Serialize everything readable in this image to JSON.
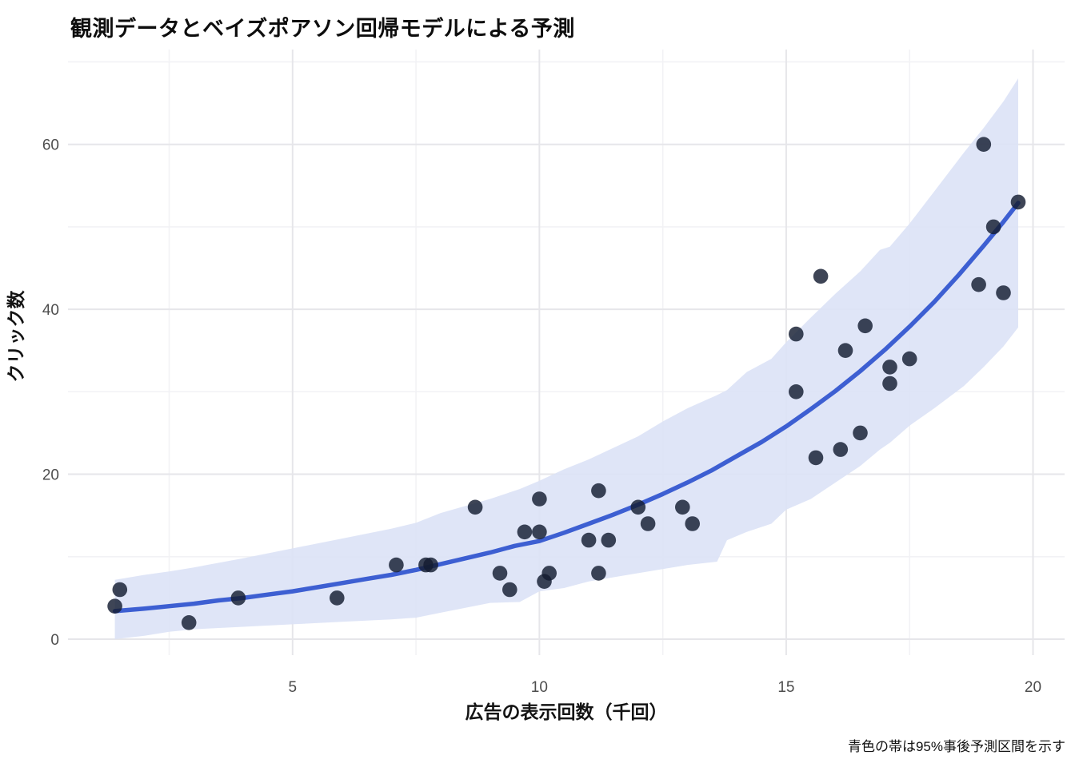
{
  "chart_data": {
    "type": "scatter",
    "title": "観測データとベイズポアソン回帰モデルによる予測",
    "xlabel": "広告の表示回数（千回）",
    "ylabel": "クリック数",
    "caption": "青色の帯は95%事後予測区間を示す",
    "xlim": [
      0.45,
      20.64
    ],
    "ylim": [
      -1.94,
      71.5
    ],
    "x_major_ticks": [
      5,
      10,
      15,
      20
    ],
    "x_minor_ticks": [
      2.5,
      7.5,
      12.5,
      17.5
    ],
    "y_major_ticks": [
      0,
      20,
      40,
      60
    ],
    "y_minor_ticks": [
      10,
      30,
      50,
      70
    ],
    "grid": "on",
    "legend_position": "none",
    "series": [
      {
        "name": "observed-data-points",
        "type": "scatter",
        "points": [
          [
            1.4,
            4
          ],
          [
            1.5,
            6
          ],
          [
            2.9,
            2
          ],
          [
            3.9,
            5
          ],
          [
            5.9,
            5
          ],
          [
            7.1,
            9
          ],
          [
            7.7,
            9
          ],
          [
            7.8,
            9
          ],
          [
            8.7,
            16
          ],
          [
            9.2,
            8
          ],
          [
            9.4,
            6
          ],
          [
            9.7,
            13
          ],
          [
            10.0,
            13
          ],
          [
            10.0,
            17
          ],
          [
            10.1,
            7
          ],
          [
            10.2,
            8
          ],
          [
            11.0,
            12
          ],
          [
            11.2,
            18
          ],
          [
            11.2,
            8
          ],
          [
            11.4,
            12
          ],
          [
            12.0,
            16
          ],
          [
            12.2,
            14
          ],
          [
            12.9,
            16
          ],
          [
            13.1,
            14
          ],
          [
            15.2,
            37
          ],
          [
            15.2,
            30
          ],
          [
            15.6,
            22
          ],
          [
            15.7,
            44
          ],
          [
            16.1,
            23
          ],
          [
            16.2,
            35
          ],
          [
            16.5,
            25
          ],
          [
            16.6,
            38
          ],
          [
            17.1,
            33
          ],
          [
            17.1,
            31
          ],
          [
            17.5,
            34
          ],
          [
            18.9,
            43
          ],
          [
            19.0,
            60
          ],
          [
            19.2,
            50
          ],
          [
            19.4,
            42
          ],
          [
            19.7,
            53
          ]
        ]
      },
      {
        "name": "posterior-mean-curve",
        "type": "line",
        "points": [
          [
            1.4,
            3.4
          ],
          [
            2,
            3.7
          ],
          [
            2.5,
            4.0
          ],
          [
            3,
            4.3
          ],
          [
            3.5,
            4.7
          ],
          [
            4,
            5.0
          ],
          [
            4.5,
            5.4
          ],
          [
            5,
            5.8
          ],
          [
            5.5,
            6.3
          ],
          [
            6,
            6.8
          ],
          [
            6.5,
            7.3
          ],
          [
            7,
            7.8
          ],
          [
            7.5,
            8.4
          ],
          [
            8,
            9.1
          ],
          [
            8.5,
            9.8
          ],
          [
            9,
            10.5
          ],
          [
            9.5,
            11.3
          ],
          [
            10,
            11.9
          ],
          [
            10.5,
            12.9
          ],
          [
            11,
            14.0
          ],
          [
            11.5,
            15.1
          ],
          [
            12,
            16.3
          ],
          [
            12.5,
            17.6
          ],
          [
            13,
            19.0
          ],
          [
            13.5,
            20.5
          ],
          [
            14,
            22.2
          ],
          [
            14.5,
            23.9
          ],
          [
            15,
            25.8
          ],
          [
            15.5,
            27.9
          ],
          [
            16,
            30.1
          ],
          [
            16.5,
            32.5
          ],
          [
            17,
            35.1
          ],
          [
            17.5,
            37.9
          ],
          [
            18,
            40.9
          ],
          [
            18.5,
            44.2
          ],
          [
            19,
            47.7
          ],
          [
            19.4,
            50.6
          ],
          [
            19.7,
            52.9
          ]
        ]
      },
      {
        "name": "posterior-predictive-95-band",
        "type": "band",
        "points": [
          [
            1.4,
            0,
            7.2
          ],
          [
            2,
            0.4,
            7.8
          ],
          [
            2.5,
            0.9,
            8.2
          ],
          [
            3,
            1.2,
            8.7
          ],
          [
            4,
            1.5,
            9.8
          ],
          [
            5,
            1.8,
            11.0
          ],
          [
            6,
            2.1,
            12.2
          ],
          [
            7,
            2.4,
            13.4
          ],
          [
            7.5,
            2.6,
            14.1
          ],
          [
            8,
            3.2,
            15.3
          ],
          [
            9,
            4.4,
            17.0
          ],
          [
            9.6,
            4.5,
            18.2
          ],
          [
            10,
            5.8,
            19.2
          ],
          [
            10.5,
            6.2,
            20.6
          ],
          [
            11,
            7,
            21.8
          ],
          [
            12,
            8,
            24.6
          ],
          [
            12.5,
            8.5,
            26.4
          ],
          [
            13,
            9,
            28.0
          ],
          [
            13.6,
            9.4,
            29.6
          ],
          [
            13.8,
            12,
            30.2
          ],
          [
            14.2,
            13,
            32.4
          ],
          [
            14.7,
            14,
            34.0
          ],
          [
            15,
            15.7,
            36.0
          ],
          [
            15.5,
            17,
            39.0
          ],
          [
            16,
            19,
            41.9
          ],
          [
            16.5,
            21,
            44.6
          ],
          [
            16.9,
            23,
            47.2
          ],
          [
            17.1,
            23.8,
            47.6
          ],
          [
            17.5,
            25.9,
            50.4
          ],
          [
            18,
            28,
            54.3
          ],
          [
            18.6,
            30.7,
            59.0
          ],
          [
            19,
            33,
            62.0
          ],
          [
            19.4,
            35.5,
            65.2
          ],
          [
            19.7,
            37.8,
            68.0
          ]
        ]
      }
    ],
    "colors": {
      "point": "#131c31",
      "line": "#3d5fd2",
      "band": "#dbe2f6",
      "grid_major": "#e6e6ea",
      "grid_minor": "#f2f2f5",
      "tick_label": "#4d4d4d",
      "text": "#0d0d0d",
      "background": "#ffffff"
    }
  }
}
